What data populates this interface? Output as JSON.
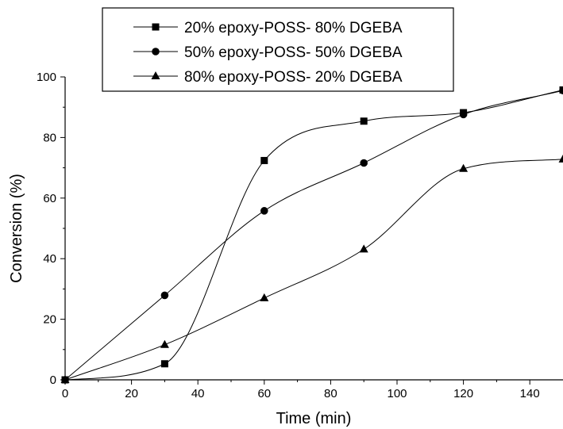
{
  "chart_data": {
    "type": "scatter",
    "xlabel": "Time (min)",
    "ylabel": "Conversion (%)",
    "xlim": [
      0,
      150
    ],
    "ylim": [
      0,
      100
    ],
    "xticks": [
      0,
      20,
      40,
      60,
      80,
      100,
      120,
      140
    ],
    "yticks": [
      0,
      20,
      40,
      60,
      80,
      100
    ],
    "grid": false,
    "legend_position": "top-center",
    "x": [
      0,
      30,
      60,
      90,
      120,
      150
    ],
    "series": [
      {
        "name": "20% epoxy-POSS- 80%  DGEBA",
        "marker": "square",
        "values": [
          0,
          5.3,
          72.4,
          85.4,
          88.2,
          95.7
        ]
      },
      {
        "name": "50% epoxy-POSS- 50%  DGEBA",
        "marker": "circle",
        "values": [
          0,
          27.9,
          55.8,
          71.6,
          87.6,
          95.5
        ]
      },
      {
        "name": "80% epoxy-POSS- 20%  DGEBA",
        "marker": "triangle",
        "values": [
          0,
          11.6,
          27.0,
          43.1,
          69.7,
          72.8
        ]
      }
    ],
    "colors": {
      "line": "#000000",
      "marker": "#000000",
      "background": "#ffffff"
    }
  }
}
